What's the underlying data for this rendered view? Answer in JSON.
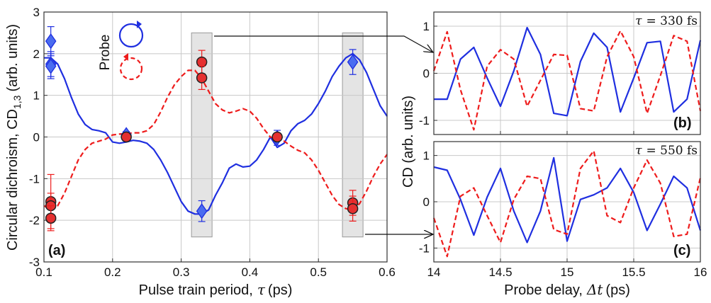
{
  "colors": {
    "blue": "#1f2fe0",
    "red": "#ee1c1c",
    "gray_box": "#e4e4e4",
    "grid": "#c8c8c8"
  },
  "chart_data": [
    {
      "id": "a",
      "type": "line",
      "panel_label": "(a)",
      "xlabel_text": "Pulse train period,",
      "xlabel_symbol": "τ",
      "xlabel_unit": "(ps)",
      "ylabel": "Circular dichroism, CD",
      "ylabel_sub": "1,3",
      "ylabel_unit": "(arb. units)",
      "xlim": [
        0.1,
        0.6
      ],
      "ylim": [
        -3,
        3
      ],
      "xticks": [
        0.1,
        0.2,
        0.3,
        0.4,
        0.5,
        0.6
      ],
      "xtick_labels": [
        "0.1",
        "0.2",
        "0.3",
        "0.4",
        "0.5",
        "0.6"
      ],
      "yticks": [
        -3,
        -2,
        -1,
        0,
        1,
        2,
        3
      ],
      "ytick_labels": [
        "-3",
        "-2",
        "-1",
        "0",
        "1",
        "2",
        "3"
      ],
      "grid": true,
      "legend": {
        "label": "Probe",
        "position": "top-left"
      },
      "highlight_regions": [
        [
          0.315,
          0.345
        ],
        [
          0.535,
          0.565
        ]
      ],
      "series": [
        {
          "color": "blue",
          "style": "solid",
          "x": [
            0.1,
            0.11,
            0.12,
            0.13,
            0.14,
            0.15,
            0.16,
            0.17,
            0.18,
            0.19,
            0.2,
            0.21,
            0.22,
            0.23,
            0.24,
            0.25,
            0.26,
            0.27,
            0.28,
            0.29,
            0.3,
            0.31,
            0.32,
            0.33,
            0.34,
            0.35,
            0.36,
            0.37,
            0.38,
            0.39,
            0.4,
            0.41,
            0.42,
            0.43,
            0.44,
            0.45,
            0.46,
            0.47,
            0.48,
            0.49,
            0.5,
            0.51,
            0.52,
            0.53,
            0.54,
            0.55,
            0.56,
            0.57,
            0.58,
            0.59,
            0.6
          ],
          "y": [
            1.9,
            1.9,
            1.75,
            1.4,
            0.95,
            0.55,
            0.3,
            0.18,
            0.15,
            0.1,
            -0.12,
            -0.15,
            -0.12,
            -0.08,
            -0.1,
            -0.15,
            -0.3,
            -0.55,
            -0.85,
            -1.2,
            -1.55,
            -1.78,
            -1.85,
            -1.85,
            -1.75,
            -1.4,
            -1.1,
            -0.75,
            -0.65,
            -0.72,
            -0.7,
            -0.55,
            -0.3,
            0.0,
            -0.25,
            -0.15,
            0.15,
            0.32,
            0.4,
            0.55,
            0.8,
            1.1,
            1.45,
            1.7,
            1.9,
            2.0,
            1.85,
            1.55,
            1.15,
            0.75,
            0.5
          ]
        },
        {
          "color": "red",
          "style": "dashed",
          "x": [
            0.1,
            0.11,
            0.12,
            0.13,
            0.14,
            0.15,
            0.16,
            0.17,
            0.18,
            0.19,
            0.2,
            0.21,
            0.22,
            0.23,
            0.24,
            0.25,
            0.26,
            0.27,
            0.28,
            0.29,
            0.3,
            0.31,
            0.32,
            0.33,
            0.34,
            0.35,
            0.36,
            0.37,
            0.38,
            0.39,
            0.4,
            0.41,
            0.42,
            0.43,
            0.44,
            0.45,
            0.46,
            0.47,
            0.48,
            0.49,
            0.5,
            0.51,
            0.52,
            0.53,
            0.54,
            0.55,
            0.56,
            0.57,
            0.58,
            0.59,
            0.6
          ],
          "y": [
            -1.65,
            -1.75,
            -1.65,
            -1.35,
            -0.95,
            -0.55,
            -0.3,
            -0.15,
            -0.1,
            -0.05,
            0.05,
            0.07,
            0.08,
            0.1,
            0.1,
            0.15,
            0.3,
            0.6,
            0.95,
            1.25,
            1.45,
            1.6,
            1.6,
            1.4,
            1.1,
            0.8,
            0.65,
            0.58,
            0.62,
            0.68,
            0.62,
            0.45,
            0.2,
            0.0,
            -0.05,
            -0.1,
            -0.22,
            -0.32,
            -0.38,
            -0.55,
            -0.8,
            -1.1,
            -1.4,
            -1.62,
            -1.72,
            -1.75,
            -1.6,
            -1.3,
            -0.95,
            -0.65,
            -0.42
          ]
        }
      ],
      "markers": [
        {
          "color": "blue",
          "shape": "diamond",
          "x": [
            0.11,
            0.11,
            0.11,
            0.22,
            0.33,
            0.44,
            0.55
          ],
          "y": [
            2.3,
            1.75,
            1.7,
            0.05,
            -1.78,
            -0.02,
            1.8
          ],
          "err": [
            0.35,
            0.3,
            0.3,
            0.08,
            0.25,
            0.18,
            0.3
          ]
        },
        {
          "color": "red",
          "shape": "circle",
          "x": [
            0.11,
            0.11,
            0.11,
            0.22,
            0.33,
            0.33,
            0.44,
            0.55,
            0.55
          ],
          "y": [
            -1.55,
            -1.65,
            -1.95,
            0.0,
            1.8,
            1.42,
            0.0,
            -1.58,
            -1.72
          ],
          "err": [
            0.65,
            0.3,
            0.3,
            0.05,
            0.28,
            0.28,
            0.05,
            0.3,
            0.3
          ]
        }
      ]
    },
    {
      "id": "b",
      "type": "line",
      "panel_label": "(b)",
      "annotation_symbol": "τ",
      "annotation_value": "= 330 fs",
      "xlim": [
        14,
        16
      ],
      "ylim": [
        -1.3,
        1.3
      ],
      "xticks": [
        14,
        14.5,
        15,
        15.5,
        16
      ],
      "yticks": [
        -1,
        0,
        1
      ],
      "ytick_labels": [
        "-1",
        "0",
        "1"
      ],
      "grid": true,
      "series": [
        {
          "color": "blue",
          "style": "solid",
          "x": [
            14,
            14.1,
            14.2,
            14.3,
            14.4,
            14.5,
            14.6,
            14.7,
            14.8,
            14.9,
            15.0,
            15.1,
            15.2,
            15.3,
            15.4,
            15.5,
            15.6,
            15.7,
            15.8,
            15.9,
            16.0
          ],
          "y": [
            -0.55,
            -0.55,
            0.3,
            0.55,
            -0.1,
            -0.7,
            0.05,
            0.97,
            0.4,
            -0.85,
            -0.9,
            0.25,
            0.85,
            0.55,
            -0.82,
            -0.1,
            0.65,
            0.68,
            -0.82,
            -0.55,
            0.7
          ]
        },
        {
          "color": "red",
          "style": "dashed",
          "x": [
            14,
            14.1,
            14.2,
            14.3,
            14.4,
            14.5,
            14.6,
            14.7,
            14.8,
            14.9,
            15.0,
            15.1,
            15.2,
            15.3,
            15.4,
            15.5,
            15.6,
            15.7,
            15.8,
            15.9,
            16.0
          ],
          "y": [
            0.05,
            0.88,
            -0.35,
            -1.2,
            0.15,
            0.5,
            0.3,
            -0.7,
            -0.15,
            0.4,
            0.38,
            -0.75,
            -0.8,
            0.35,
            0.9,
            0.35,
            -0.85,
            -0.05,
            0.8,
            0.68,
            -0.8
          ]
        }
      ]
    },
    {
      "id": "c",
      "type": "line",
      "panel_label": "(c)",
      "annotation_symbol": "τ",
      "annotation_value": "= 550 fs",
      "xlabel_text": "Probe delay,",
      "xlabel_symbol": "Δt",
      "xlabel_unit": "(ps)",
      "shared_ylabel": "CD (arb. units)",
      "xlim": [
        14,
        16
      ],
      "ylim": [
        -1.3,
        1.3
      ],
      "xticks": [
        14,
        14.5,
        15,
        15.5,
        16
      ],
      "xtick_labels": [
        "14",
        "14.5",
        "15",
        "15.5",
        "16"
      ],
      "yticks": [
        -1,
        0,
        1
      ],
      "ytick_labels": [
        "-1",
        "0",
        "1"
      ],
      "grid": true,
      "series": [
        {
          "color": "blue",
          "style": "solid",
          "x": [
            14,
            14.1,
            14.2,
            14.3,
            14.4,
            14.5,
            14.6,
            14.7,
            14.8,
            14.9,
            15.0,
            15.1,
            15.2,
            15.3,
            15.4,
            15.5,
            15.6,
            15.7,
            15.8,
            15.9,
            16.0
          ],
          "y": [
            0.75,
            0.68,
            0.05,
            -0.72,
            0.1,
            0.72,
            -0.2,
            -0.88,
            -0.2,
            0.95,
            -0.85,
            0.05,
            0.15,
            0.3,
            0.72,
            0.2,
            -0.62,
            -0.05,
            0.55,
            0.3,
            -0.62
          ]
        },
        {
          "color": "red",
          "style": "dashed",
          "x": [
            14,
            14.1,
            14.2,
            14.3,
            14.4,
            14.5,
            14.6,
            14.7,
            14.8,
            14.9,
            15.0,
            15.1,
            15.2,
            15.3,
            15.4,
            15.5,
            15.6,
            15.7,
            15.8,
            15.9,
            16.0
          ],
          "y": [
            -0.35,
            -1.18,
            0.12,
            0.3,
            -0.3,
            -0.88,
            0.05,
            0.55,
            0.5,
            -0.6,
            -0.7,
            0.72,
            1.1,
            -0.3,
            -0.45,
            0.3,
            0.9,
            0.4,
            -0.75,
            -0.7,
            0.52
          ]
        }
      ]
    }
  ]
}
